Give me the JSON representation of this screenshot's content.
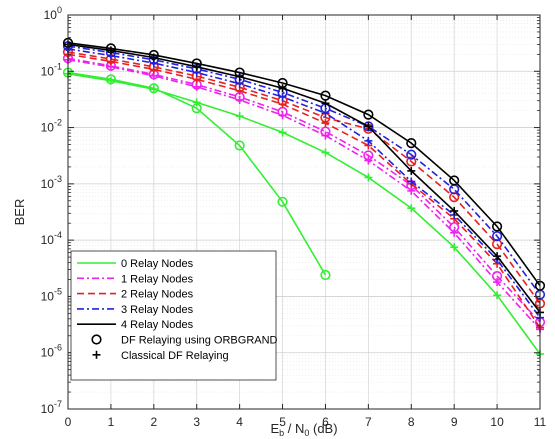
{
  "chart_data": {
    "type": "line",
    "xlabel_parts": {
      "main1": "E",
      "sub1": "b",
      "mid": " / N",
      "sub2": "0",
      "tail": " (dB)"
    },
    "ylabel": "BER",
    "xlim": [
      0,
      11
    ],
    "ylim_log10": [
      -7,
      0
    ],
    "y_scale": "log",
    "grid": true,
    "legend_position": "bottom-left",
    "x_ticks": [
      "0",
      "1",
      "2",
      "3",
      "4",
      "5",
      "6",
      "7",
      "8",
      "9",
      "10",
      "11"
    ],
    "y_ticks": [
      {
        "base": "10",
        "exp": "0"
      },
      {
        "base": "10",
        "exp": "-1"
      },
      {
        "base": "10",
        "exp": "-2"
      },
      {
        "base": "10",
        "exp": "-3"
      },
      {
        "base": "10",
        "exp": "-4"
      },
      {
        "base": "10",
        "exp": "-5"
      },
      {
        "base": "10",
        "exp": "-6"
      },
      {
        "base": "10",
        "exp": "-7"
      }
    ],
    "series": [
      {
        "name": "0 Relay Nodes",
        "color": "#33ee33",
        "dash": "solid",
        "orbgrand_x": [
          0,
          1,
          2,
          3,
          4,
          5,
          6
        ],
        "orbgrand_y": [
          0.095,
          0.072,
          0.05,
          0.022,
          0.0048,
          0.00048,
          2.4e-05
        ],
        "classical_x": [
          0,
          1,
          2,
          3,
          4,
          5,
          6,
          7,
          8,
          9,
          10,
          11
        ],
        "classical_y": [
          0.09,
          0.068,
          0.048,
          0.028,
          0.016,
          0.0082,
          0.0036,
          0.0013,
          0.00037,
          7.5e-05,
          1.05e-05,
          9.5e-07
        ]
      },
      {
        "name": "1 Relay Nodes",
        "color": "#ee22ee",
        "dash": "dashdot",
        "orbgrand_x": [
          0,
          1,
          2,
          3,
          4,
          5,
          6,
          7,
          8,
          9,
          10,
          11
        ],
        "orbgrand_y": [
          0.17,
          0.125,
          0.088,
          0.058,
          0.035,
          0.019,
          0.0085,
          0.0032,
          0.00095,
          0.00017,
          2.3e-05,
          3.5e-06
        ],
        "classical_x": [
          0,
          1,
          2,
          3,
          4,
          5,
          6,
          7,
          8,
          9,
          10,
          11
        ],
        "classical_y": [
          0.16,
          0.12,
          0.083,
          0.053,
          0.031,
          0.0165,
          0.0072,
          0.0026,
          0.00075,
          0.000135,
          1.8e-05,
          2.6e-06
        ]
      },
      {
        "name": "2 Relay Nodes",
        "color": "#e82020",
        "dash": "dashed",
        "orbgrand_x": [
          0,
          1,
          2,
          3,
          4,
          5,
          6,
          7,
          8,
          9,
          10,
          11
        ],
        "orbgrand_y": [
          0.22,
          0.165,
          0.12,
          0.082,
          0.052,
          0.03,
          0.015,
          0.0095,
          0.0025,
          0.00058,
          8.5e-05,
          7.5e-06
        ],
        "classical_x": [
          0,
          1,
          2,
          3,
          4,
          5,
          6,
          7,
          8,
          9,
          10,
          11
        ],
        "classical_y": [
          0.2,
          0.15,
          0.108,
          0.072,
          0.045,
          0.026,
          0.012,
          0.0048,
          0.001,
          0.00024,
          3.8e-05,
          2.8e-06
        ]
      },
      {
        "name": "3 Relay Nodes",
        "color": "#2222dd",
        "dash": "dashdot",
        "orbgrand_x": [
          0,
          1,
          2,
          3,
          4,
          5,
          6,
          7,
          8,
          9,
          10,
          11
        ],
        "orbgrand_y": [
          0.28,
          0.215,
          0.16,
          0.11,
          0.072,
          0.042,
          0.022,
          0.0105,
          0.0033,
          0.0008,
          0.000118,
          1.08e-05
        ],
        "classical_x": [
          0,
          1,
          2,
          3,
          4,
          5,
          6,
          7,
          8,
          9,
          10,
          11
        ],
        "classical_y": [
          0.25,
          0.19,
          0.14,
          0.095,
          0.06,
          0.035,
          0.018,
          0.0058,
          0.0011,
          0.00028,
          4.5e-05,
          4.2e-06
        ]
      },
      {
        "name": "4 Relay Nodes",
        "color": "#000000",
        "dash": "solid",
        "orbgrand_x": [
          0,
          1,
          2,
          3,
          4,
          5,
          6,
          7,
          8,
          9,
          10,
          11
        ],
        "orbgrand_y": [
          0.32,
          0.255,
          0.195,
          0.138,
          0.095,
          0.062,
          0.037,
          0.017,
          0.0053,
          0.00115,
          0.000175,
          1.55e-05
        ],
        "classical_x": [
          0,
          1,
          2,
          3,
          4,
          5,
          6,
          7,
          8,
          9,
          10,
          11
        ],
        "classical_y": [
          0.3,
          0.235,
          0.175,
          0.12,
          0.08,
          0.05,
          0.027,
          0.0105,
          0.0017,
          0.00033,
          5.2e-05,
          5.2e-06
        ]
      }
    ],
    "marker_legend": [
      {
        "label": "DF Relaying using ORBGRAND",
        "marker": "circle"
      },
      {
        "label": "Classical DF Relaying",
        "marker": "plus"
      }
    ]
  }
}
